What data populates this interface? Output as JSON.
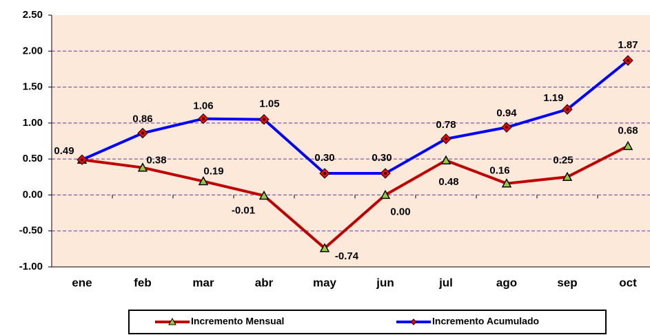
{
  "chart_data": {
    "type": "line",
    "categories": [
      "ene",
      "feb",
      "mar",
      "abr",
      "may",
      "jun",
      "jul",
      "ago",
      "sep",
      "oct"
    ],
    "series": [
      {
        "name": "Incremento Mensual",
        "color": "#c00000",
        "marker": "triangle",
        "marker_color": "#9acd32",
        "values": [
          0.49,
          0.38,
          0.19,
          -0.01,
          -0.74,
          0.0,
          0.48,
          0.16,
          0.25,
          0.68
        ],
        "value_labels": [
          null,
          "0.38",
          "0.19",
          "-0.01",
          "-0.74",
          "0.00",
          "0.48",
          "0.16",
          "0.25",
          "0.68"
        ]
      },
      {
        "name": "Incremento Acumulado",
        "color": "#0000ff",
        "marker": "diamond",
        "marker_color": "#ff0000",
        "values": [
          0.49,
          0.86,
          1.06,
          1.05,
          0.3,
          0.3,
          0.78,
          0.94,
          1.19,
          1.87
        ],
        "value_labels": [
          "0.49",
          "0.86",
          "1.06",
          "1.05",
          "0.30",
          "0.30",
          "0.78",
          "0.94",
          "1.19",
          "1.87"
        ]
      }
    ],
    "ylim": [
      -1.0,
      2.5
    ],
    "yticks": [
      {
        "value": -1.0,
        "label": "-1.00"
      },
      {
        "value": -0.5,
        "label": "-0.50"
      },
      {
        "value": 0,
        "label": "0.00"
      },
      {
        "value": 0.5,
        "label": "0.50"
      },
      {
        "value": 1.0,
        "label": "1.00"
      },
      {
        "value": 1.5,
        "label": "1.50"
      },
      {
        "value": 2.0,
        "label": "2.00"
      },
      {
        "value": 2.5,
        "label": "2.50"
      }
    ],
    "grid": true,
    "legend": "bottom",
    "plot_background": "#fde9d9",
    "grid_color": "#7030a0",
    "negative_label_color": "#ff0000"
  }
}
